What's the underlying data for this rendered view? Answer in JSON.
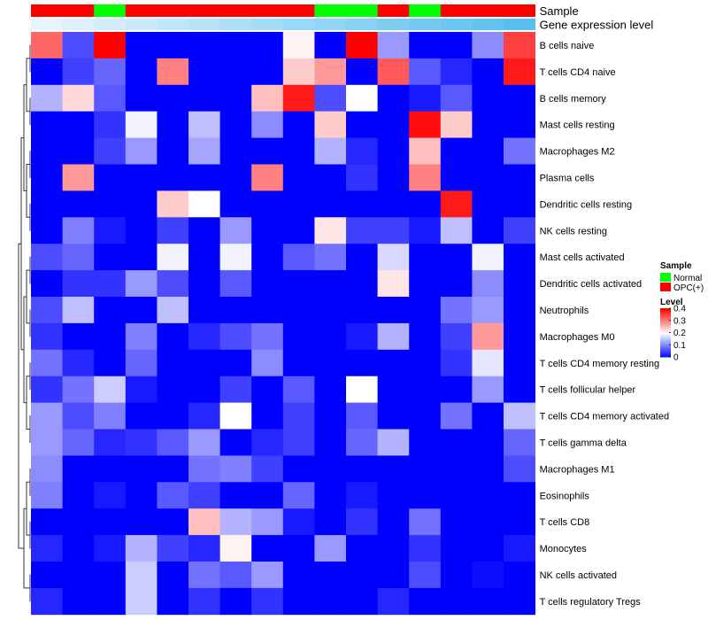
{
  "chart_data": {
    "type": "heatmap",
    "annotation_tracks": [
      {
        "label": "Sample",
        "values": [
          "OPC(+)",
          "OPC(+)",
          "Normal",
          "OPC(+)",
          "OPC(+)",
          "OPC(+)",
          "OPC(+)",
          "OPC(+)",
          "OPC(+)",
          "Normal",
          "Normal",
          "OPC(+)",
          "Normal",
          "OPC(+)",
          "OPC(+)",
          "OPC(+)"
        ]
      },
      {
        "label": "Gene expression level",
        "values": [
          0.0,
          0.07,
          0.13,
          0.2,
          0.27,
          0.33,
          0.4,
          0.47,
          0.53,
          0.6,
          0.67,
          0.73,
          0.8,
          0.87,
          0.93,
          1.0
        ]
      }
    ],
    "rows": [
      "B cells naive",
      "T cells CD4 naive",
      "B cells memory",
      "Mast cells resting",
      "Macrophages M2",
      "Plasma cells",
      "Dendritic cells resting",
      "NK cells resting",
      "Mast cells activated",
      "Dendritic cells activated",
      "Neutrophils",
      "Macrophages M0",
      "T cells CD4 memory resting",
      "T cells follicular helper",
      "T cells CD4 memory activated",
      "T cells gamma delta",
      "Macrophages M1",
      "Eosinophils",
      "T cells CD8",
      "Monocytes",
      "NK cells activated",
      "T cells regulatory  Tregs"
    ],
    "n_columns": 16,
    "values": [
      [
        0.32,
        0.06,
        0.4,
        0,
        0,
        0,
        0,
        0,
        0.21,
        0,
        0.4,
        0.12,
        0,
        0,
        0.11,
        0.35
      ],
      [
        0,
        0.05,
        0.08,
        0,
        0.3,
        0,
        0,
        0,
        0.24,
        0.28,
        0,
        0.33,
        0.07,
        0.03,
        0,
        0.38
      ],
      [
        0.14,
        0.23,
        0.07,
        0,
        0,
        0,
        0,
        0.25,
        0.38,
        0.06,
        0.2,
        0,
        0.02,
        0.07,
        0,
        0
      ],
      [
        0,
        0,
        0.04,
        0.19,
        0,
        0.15,
        0,
        0.11,
        0,
        0.24,
        0,
        0,
        0.39,
        0.24,
        0,
        0
      ],
      [
        0,
        0,
        0.05,
        0.12,
        0,
        0.13,
        0,
        0,
        0,
        0.14,
        0.03,
        0,
        0.25,
        0,
        0,
        0.09
      ],
      [
        0,
        0.28,
        0,
        0,
        0,
        0,
        0,
        0.3,
        0,
        0,
        0.04,
        0,
        0.3,
        0,
        0,
        0
      ],
      [
        0,
        0,
        0,
        0,
        0.24,
        0.2,
        0,
        0,
        0,
        0,
        0,
        0,
        0,
        0.38,
        0,
        0
      ],
      [
        0,
        0.1,
        0.02,
        0,
        0.05,
        0,
        0.12,
        0,
        0,
        0.22,
        0.05,
        0.05,
        0.02,
        0.15,
        0,
        0.05
      ],
      [
        0.06,
        0.08,
        0,
        0,
        0.19,
        0,
        0.19,
        0,
        0.07,
        0.09,
        0,
        0.17,
        0,
        0,
        0.19,
        0
      ],
      [
        0,
        0.04,
        0.04,
        0.12,
        0.06,
        0,
        0.07,
        0,
        0,
        0,
        0,
        0.22,
        0,
        0,
        0.11,
        0
      ],
      [
        0.06,
        0.15,
        0,
        0,
        0.15,
        0,
        0,
        0,
        0,
        0,
        0,
        0,
        0,
        0.09,
        0.12,
        0
      ],
      [
        0.04,
        0,
        0,
        0.1,
        0,
        0.03,
        0.06,
        0.09,
        0,
        0,
        0.02,
        0.14,
        0,
        0.05,
        0.28,
        0
      ],
      [
        0.09,
        0.03,
        0,
        0.08,
        0,
        0,
        0,
        0.11,
        0,
        0,
        0,
        0,
        0,
        0.04,
        0.18,
        0
      ],
      [
        0.04,
        0.09,
        0.16,
        0.02,
        0,
        0,
        0.05,
        0,
        0.07,
        0,
        0.2,
        0,
        0,
        0,
        0.12,
        0
      ],
      [
        0.12,
        0.06,
        0.1,
        0,
        0,
        0.03,
        0.2,
        0,
        0.05,
        0,
        0.07,
        0,
        0,
        0.09,
        0,
        0.15
      ],
      [
        0.12,
        0.08,
        0.03,
        0.04,
        0.07,
        0.12,
        0,
        0.03,
        0.05,
        0,
        0.08,
        0.14,
        0,
        0,
        0,
        0.08
      ],
      [
        0.11,
        0,
        0,
        0,
        0,
        0.09,
        0.1,
        0.05,
        0,
        0,
        0,
        0,
        0,
        0,
        0,
        0.06
      ],
      [
        0.1,
        0,
        0.02,
        0,
        0.07,
        0.05,
        0,
        0,
        0.08,
        0,
        0.02,
        0,
        0,
        0,
        0,
        0
      ],
      [
        0,
        0,
        0,
        0,
        0,
        0.25,
        0.14,
        0.12,
        0.02,
        0,
        0.04,
        0,
        0.09,
        0,
        0,
        0
      ],
      [
        0.03,
        0,
        0.02,
        0.14,
        0.05,
        0.03,
        0.21,
        0,
        0,
        0.12,
        0,
        0,
        0.04,
        0,
        0,
        0.02
      ],
      [
        0,
        0,
        0,
        0.16,
        0,
        0.09,
        0.07,
        0.12,
        0,
        0,
        0,
        0,
        0.06,
        0,
        0.01,
        0
      ],
      [
        0.03,
        0,
        0,
        0.16,
        0,
        0.04,
        0,
        0.04,
        0,
        0,
        0,
        0.03,
        0,
        0,
        0,
        0
      ]
    ],
    "legend_sample": {
      "title": "Sample",
      "items": [
        {
          "label": "Normal",
          "color": "#00ff00"
        },
        {
          "label": "OPC(+)",
          "color": "#ff0000"
        }
      ]
    },
    "legend_level": {
      "title": "Level",
      "range": [
        0,
        0.4
      ],
      "ticks": [
        "0",
        "0.1",
        "0.2",
        "0.3",
        "0.4"
      ],
      "colors": {
        "low": "#0000ff",
        "mid": "#ffffff",
        "high": "#ff0000"
      }
    }
  }
}
